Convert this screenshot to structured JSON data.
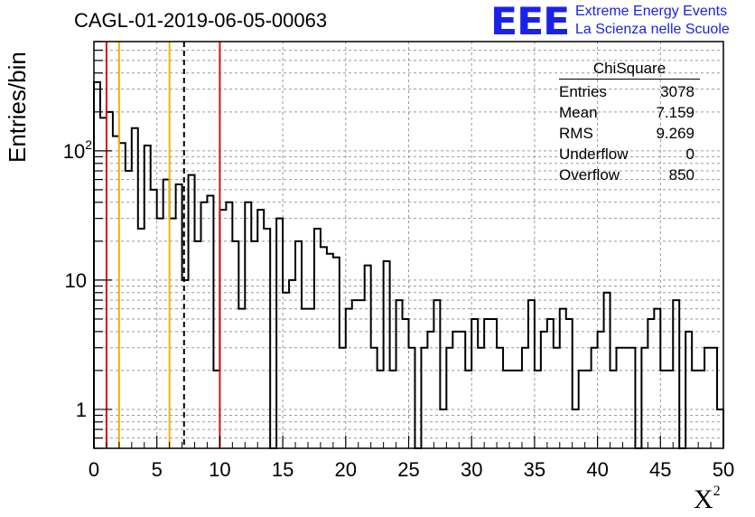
{
  "header": {
    "title": "CAGL-01-2019-06-05-00063",
    "logo_text": "EEE",
    "logo_line1": "Extreme Energy Events",
    "logo_line2": "La Scienza nelle Scuole"
  },
  "stats": {
    "title": "ChiSquare",
    "rows": [
      {
        "label": "Entries",
        "value": "3078"
      },
      {
        "label": "Mean",
        "value": "7.159"
      },
      {
        "label": "RMS",
        "value": "9.269"
      },
      {
        "label": "Underflow",
        "value": "0"
      },
      {
        "label": "Overflow",
        "value": "850"
      }
    ]
  },
  "colors": {
    "histogram": "#000000",
    "red_lines": "#dd1111",
    "orange_lines": "#f0b400",
    "grid": "#9a9a9a",
    "logo": "#1a22e6"
  },
  "chart_data": {
    "type": "bar",
    "histogram_style": "step",
    "title": "CAGL-01-2019-06-05-00063",
    "xlabel": "X",
    "xlabel_superscript": "2",
    "ylabel": "Entries/bin",
    "xlim": [
      0,
      50
    ],
    "ylim": [
      0.5,
      700
    ],
    "yscale": "log",
    "grid": true,
    "legend": "top-right",
    "bin_width": 0.5,
    "x_ticks": [
      0,
      5,
      10,
      15,
      20,
      25,
      30,
      35,
      40,
      45,
      50
    ],
    "x_tick_labels": [
      "0",
      "5",
      "10",
      "15",
      "20",
      "25",
      "30",
      "35",
      "40",
      "45",
      "50"
    ],
    "y_tick_labels": [
      {
        "value": 1,
        "base": "1",
        "exp": ""
      },
      {
        "value": 10,
        "base": "10",
        "exp": ""
      },
      {
        "value": 100,
        "base": "10",
        "exp": "2"
      }
    ],
    "values": [
      340,
      180,
      200,
      130,
      115,
      70,
      150,
      25,
      110,
      50,
      30,
      60,
      30,
      55,
      10,
      65,
      20,
      40,
      45,
      2,
      35,
      40,
      20,
      6,
      40,
      20,
      35,
      25,
      0.2,
      30,
      8,
      10,
      20,
      6,
      6,
      25,
      18,
      16,
      15,
      3,
      6,
      7,
      7,
      13,
      3,
      2,
      14,
      2,
      7,
      5,
      3,
      0.2,
      3,
      4,
      7,
      1,
      3,
      4,
      4,
      2,
      5,
      3,
      5,
      5,
      3,
      2,
      2,
      2,
      3,
      7,
      2,
      4,
      5,
      3,
      6,
      5,
      1,
      2,
      2,
      3,
      4,
      8,
      2,
      3,
      3,
      3,
      0.2,
      3,
      5,
      6,
      2,
      2,
      7,
      0.2,
      4,
      2,
      2,
      3,
      3,
      1
    ],
    "vertical_lines": [
      {
        "x": 1,
        "style": "solid",
        "color": "#dd1111"
      },
      {
        "x": 2,
        "style": "solid",
        "color": "#f0b400"
      },
      {
        "x": 6,
        "style": "solid",
        "color": "#f0b400"
      },
      {
        "x": 7.159,
        "style": "dashed",
        "color": "#000000"
      },
      {
        "x": 10,
        "style": "solid",
        "color": "#dd1111"
      }
    ]
  }
}
